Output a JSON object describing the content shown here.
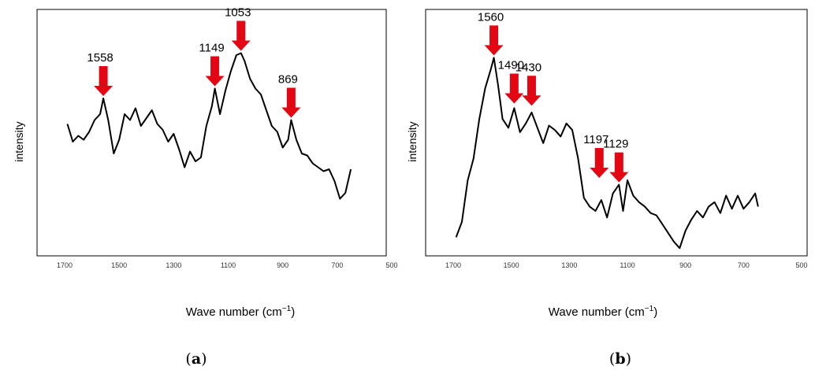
{
  "chart_data": [
    {
      "id": "a",
      "type": "line",
      "panel_label": "a",
      "xlabel": "Wave number (cm",
      "xlabel_sup": "−1",
      "xlabel_close": ")",
      "ylabel": "intensity",
      "xlim": [
        1700,
        500
      ],
      "x_reversed": true,
      "xticks": [
        "1700",
        "1500",
        "1300",
        "1100",
        "900",
        "700",
        "500"
      ],
      "yticks": [],
      "ylim": [
        0,
        100
      ],
      "grid": false,
      "line_color": "#000000",
      "arrow_color": "#e30613",
      "peaks": [
        {
          "label": "1558",
          "x": 1558,
          "y": 66
        },
        {
          "label": "1149",
          "x": 1149,
          "y": 71
        },
        {
          "label": "1053",
          "x": 1053,
          "y": 89
        },
        {
          "label": "869",
          "x": 869,
          "y": 55
        }
      ],
      "series": [
        {
          "x": [
            1690,
            1670,
            1650,
            1630,
            1610,
            1590,
            1570,
            1558,
            1540,
            1520,
            1500,
            1480,
            1460,
            1440,
            1420,
            1400,
            1380,
            1360,
            1340,
            1320,
            1300,
            1280,
            1260,
            1240,
            1220,
            1200,
            1180,
            1160,
            1149,
            1130,
            1110,
            1090,
            1070,
            1053,
            1040,
            1020,
            1000,
            980,
            960,
            940,
            920,
            900,
            880,
            869,
            850,
            830,
            810,
            790,
            770,
            750,
            730,
            710,
            690,
            670,
            650
          ],
          "y": [
            53,
            44,
            47,
            45,
            49,
            55,
            58,
            66,
            55,
            38,
            45,
            58,
            55,
            61,
            52,
            56,
            60,
            53,
            50,
            44,
            48,
            40,
            31,
            39,
            34,
            36,
            52,
            62,
            71,
            58,
            70,
            80,
            88,
            89,
            85,
            76,
            71,
            68,
            60,
            52,
            49,
            41,
            45,
            55,
            45,
            38,
            37,
            33,
            31,
            29,
            30,
            24,
            15,
            18,
            30
          ]
        }
      ]
    },
    {
      "id": "b",
      "type": "line",
      "panel_label": "b",
      "xlabel": "Wave number (cm",
      "xlabel_sup": "−1",
      "xlabel_close": ")",
      "ylabel": "intensity",
      "xlim": [
        1700,
        500
      ],
      "x_reversed": true,
      "xticks": [
        "1700",
        "1500",
        "1300",
        "1100",
        "900",
        "700",
        "500"
      ],
      "yticks": [],
      "ylim": [
        0,
        100
      ],
      "grid": false,
      "line_color": "#000000",
      "arrow_color": "#e30613",
      "peaks": [
        {
          "label": "1560",
          "x": 1560,
          "y": 88
        },
        {
          "label": "1490",
          "x": 1490,
          "y": 66
        },
        {
          "label": "1430",
          "x": 1430,
          "y": 65
        },
        {
          "label": "1129",
          "x": 1129,
          "y": 30
        },
        {
          "label": "1197",
          "x": 1197,
          "y": 32
        }
      ],
      "series": [
        {
          "x": [
            1690,
            1670,
            1650,
            1630,
            1610,
            1590,
            1570,
            1560,
            1545,
            1530,
            1510,
            1490,
            1470,
            1450,
            1430,
            1410,
            1390,
            1370,
            1350,
            1330,
            1310,
            1290,
            1270,
            1250,
            1230,
            1210,
            1190,
            1170,
            1150,
            1129,
            1115,
            1100,
            1080,
            1060,
            1040,
            1020,
            1000,
            980,
            960,
            940,
            920,
            900,
            880,
            860,
            840,
            820,
            800,
            780,
            760,
            740,
            720,
            700,
            680,
            660,
            650
          ],
          "y": [
            6,
            13,
            32,
            42,
            60,
            74,
            83,
            88,
            75,
            60,
            56,
            65,
            54,
            58,
            63,
            56,
            49,
            57,
            55,
            52,
            58,
            55,
            42,
            24,
            20,
            18,
            23,
            15,
            26,
            30,
            18,
            32,
            25,
            22,
            20,
            17,
            16,
            12,
            8,
            4,
            1,
            9,
            14,
            18,
            15,
            20,
            22,
            17,
            25,
            19,
            25,
            19,
            22,
            26,
            20
          ]
        }
      ]
    }
  ]
}
